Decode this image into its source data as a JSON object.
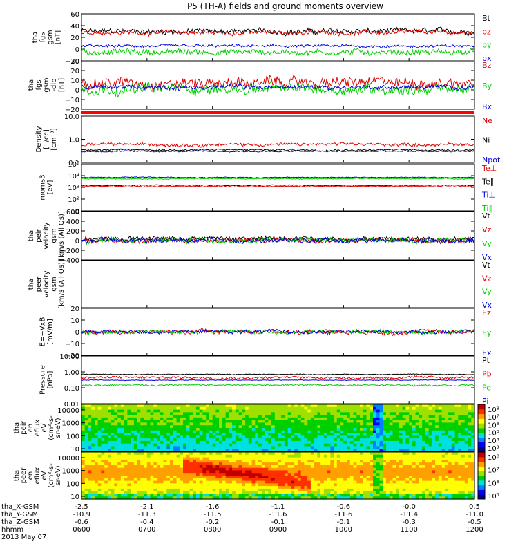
{
  "chart_data": {
    "type": "line",
    "title": "P5 (TH-A) fields and ground moments overview",
    "date": "2013 May 07",
    "xlim": [
      600,
      1200
    ],
    "x_ticks": [
      "0600",
      "0700",
      "0800",
      "0900",
      "1000",
      "1100",
      "1200"
    ],
    "ephemeris": [
      {
        "label": "tha_X-GSM",
        "values": [
          "-2.5",
          "-2.1",
          "-1.6",
          "-1.1",
          "-0.6",
          "-0.0",
          "0.5"
        ]
      },
      {
        "label": "tha_Y-GSM",
        "values": [
          "-10.9",
          "-11.3",
          "-11.5",
          "-11.6",
          "-11.6",
          "-11.4",
          "-11.0"
        ]
      },
      {
        "label": "tha_Z-GSM",
        "values": [
          "-0.6",
          "-0.4",
          "-0.2",
          "-0.1",
          "-0.1",
          "-0.3",
          "-0.5"
        ]
      },
      {
        "label": "hhmm",
        "values": [
          "0600",
          "0700",
          "0800",
          "0900",
          "1000",
          "1100",
          "1200"
        ]
      }
    ],
    "colors": {
      "black": "#000000",
      "red": "#e00000",
      "green": "#00cc00",
      "blue": "#0000dd"
    },
    "panels": [
      {
        "id": "fgs",
        "ylabel": [
          "tha",
          "fgs",
          "gsm",
          "[nT]"
        ],
        "scale": "linear",
        "ylim": [
          -20,
          60
        ],
        "ticks": [
          "60",
          "40",
          "20",
          "0",
          "−20"
        ],
        "legend": [
          {
            "name": "Bt",
            "color": "#000000"
          },
          {
            "name": "bz",
            "color": "#e00000"
          },
          {
            "name": "by",
            "color": "#00cc00"
          },
          {
            "name": "bx",
            "color": "#0000dd"
          }
        ],
        "series": [
          {
            "name": "Bt",
            "level": 30,
            "noise": 4,
            "spike": 25
          },
          {
            "name": "bz",
            "level": 28,
            "noise": 3,
            "spike": 20
          },
          {
            "name": "by",
            "level": -5,
            "noise": 4,
            "spike": 15
          },
          {
            "name": "bx",
            "level": 5,
            "noise": 2,
            "spike": 10
          }
        ]
      },
      {
        "id": "fgs_dsl",
        "ylabel": [
          "tha",
          "fgs",
          "gsm",
          "-dip",
          "[nT]"
        ],
        "scale": "linear",
        "ylim": [
          -25,
          30
        ],
        "ticks": [
          "30",
          "20",
          "10",
          "0",
          "−10",
          "−20"
        ],
        "legend": [
          {
            "name": "Bz",
            "color": "#e00000"
          },
          {
            "name": "By",
            "color": "#00cc00"
          },
          {
            "name": "Bx",
            "color": "#0000dd"
          }
        ],
        "series": [
          {
            "name": "Bz",
            "level": 5,
            "noise": 5,
            "spike": 20
          },
          {
            "name": "By",
            "level": -2,
            "noise": 5,
            "spike": 18
          },
          {
            "name": "Bx",
            "level": 0,
            "noise": 2,
            "spike": 20
          }
        ]
      },
      {
        "id": "density",
        "ylabel": [
          "Density",
          "[1/cc]",
          "[cm⁻³]"
        ],
        "scale": "log",
        "ylim": [
          0.1,
          10
        ],
        "ticks": [
          "10.0",
          "1.0",
          "0.1"
        ],
        "legend": [
          {
            "name": "Ne",
            "color": "#e00000"
          },
          {
            "name": "Ni",
            "color": "#000000"
          },
          {
            "name": "Npot",
            "color": "#0000dd"
          }
        ],
        "series": [
          {
            "name": "Ne",
            "level": 0.6,
            "noise": 0.25,
            "spike": 8
          },
          {
            "name": "Ni",
            "level": 0.35,
            "noise": 0.15,
            "spike": 1
          },
          {
            "name": "Npot",
            "level": 0.3,
            "noise": 0.1,
            "spike": 1
          }
        ]
      },
      {
        "id": "temp",
        "ylabel": [
          "moms3",
          "[eV]"
        ],
        "scale": "log",
        "ylim": [
          10,
          100000
        ],
        "ticks": [
          "10⁵",
          "10⁴",
          "10³",
          "10²",
          "10"
        ],
        "legend": [
          {
            "name": "Te⊥",
            "color": "#e00000"
          },
          {
            "name": "Te∥",
            "color": "#000000"
          },
          {
            "name": "Ti⊥",
            "color": "#0000dd"
          },
          {
            "name": "Ti∥",
            "color": "#00cc00"
          }
        ],
        "series": [
          {
            "name": "Ti⊥",
            "level": 7000,
            "noise": 0.15,
            "spike": 0
          },
          {
            "name": "Ti∥",
            "level": 5500,
            "noise": 0.15,
            "spike": 0
          },
          {
            "name": "Te∥",
            "level": 1500,
            "noise": 0.15,
            "spike": 0
          },
          {
            "name": "Te⊥",
            "level": 1200,
            "noise": 0.15,
            "spike": 0
          }
        ]
      },
      {
        "id": "peir_vel",
        "ylabel": [
          "tha",
          "peir",
          "velocity",
          "gsm",
          "[km/s (All Qs)]"
        ],
        "scale": "linear",
        "ylim": [
          -400,
          600
        ],
        "ticks": [
          "600",
          "400",
          "200",
          "0",
          "−200",
          "−400"
        ],
        "legend": [
          {
            "name": "Vt",
            "color": "#000000"
          },
          {
            "name": "Vz",
            "color": "#e00000"
          },
          {
            "name": "Vy",
            "color": "#00cc00"
          },
          {
            "name": "Vx",
            "color": "#0000dd"
          }
        ],
        "series": [
          {
            "name": "Vt",
            "level": 40,
            "noise": 40,
            "spike": 450
          },
          {
            "name": "Vz",
            "level": 0,
            "noise": 40,
            "spike": 150
          },
          {
            "name": "Vy",
            "level": 0,
            "noise": 40,
            "spike": 150
          },
          {
            "name": "Vx",
            "level": 0,
            "noise": 40,
            "spike": 200
          }
        ]
      },
      {
        "id": "peer_vel",
        "ylabel": [
          "tha",
          "peer",
          "velocity",
          "gsm",
          "[km/s (All Qs)]"
        ],
        "scale": "linear",
        "ylim": [
          -400,
          600
        ],
        "ticks": [],
        "legend": [
          {
            "name": "Vt",
            "color": "#000000"
          },
          {
            "name": "Vz",
            "color": "#e00000"
          },
          {
            "name": "Vy",
            "color": "#00cc00"
          },
          {
            "name": "Vx",
            "color": "#0000dd"
          }
        ],
        "series": []
      },
      {
        "id": "efield",
        "ylabel": [
          "E=−VxB",
          "[mV/m]"
        ],
        "scale": "linear",
        "ylim": [
          -20,
          20
        ],
        "ticks": [
          "20",
          "10",
          "0",
          "−10",
          "−20"
        ],
        "legend": [
          {
            "name": "Ez",
            "color": "#e00000"
          },
          {
            "name": "Ey",
            "color": "#00cc00"
          },
          {
            "name": "Ex",
            "color": "#0000dd"
          }
        ],
        "series": [
          {
            "name": "Ez",
            "level": 0,
            "noise": 1.5,
            "spike": 10
          },
          {
            "name": "Ey",
            "level": 0,
            "noise": 1.5,
            "spike": 20
          },
          {
            "name": "Ex",
            "level": 0,
            "noise": 1.2,
            "spike": 10
          }
        ]
      },
      {
        "id": "pressure",
        "ylabel": [
          "Pressure",
          "[nPa]"
        ],
        "scale": "log",
        "ylim": [
          0.01,
          10
        ],
        "ticks": [
          "10.00",
          "1.00",
          "0.10",
          "0.01"
        ],
        "legend": [
          {
            "name": "Pt",
            "color": "#000000"
          },
          {
            "name": "Pb",
            "color": "#e00000"
          },
          {
            "name": "Pe",
            "color": "#00cc00"
          },
          {
            "name": "Pi",
            "color": "#0000dd"
          }
        ],
        "series": [
          {
            "name": "Pt",
            "level": 0.7,
            "noise": 0.1,
            "spike": 0.6
          },
          {
            "name": "Pb",
            "level": 0.45,
            "noise": 0.3,
            "spike": 0.4
          },
          {
            "name": "Pi",
            "level": 0.3,
            "noise": 0.08,
            "spike": 0.2
          },
          {
            "name": "Pe",
            "level": 0.15,
            "noise": 0.2,
            "spike": 0.2
          }
        ]
      }
    ],
    "spectrograms": [
      {
        "id": "peir_eflux",
        "ylabel": [
          "tha",
          "peir",
          "en",
          "eflux",
          "eV",
          "(cm²-s-",
          "sr-eV)"
        ],
        "yticks": [
          "10000",
          "1000",
          "100",
          "10"
        ],
        "colorbar": [
          "10⁸",
          "10⁷",
          "10⁶",
          "10⁵",
          "10⁴",
          "10³"
        ],
        "scale": "log",
        "ylim": [
          10,
          20000
        ]
      },
      {
        "id": "peer_eflux",
        "ylabel": [
          "tha",
          "peer",
          "en",
          "eflux",
          "eV",
          "(cm²-s-",
          "sr-eV)"
        ],
        "yticks": [
          "10000",
          "1000",
          "100",
          "10"
        ],
        "colorbar": [
          "10⁸",
          "10⁷",
          "10⁶",
          "10⁵"
        ],
        "scale": "log",
        "ylim": [
          10,
          20000
        ]
      }
    ]
  }
}
